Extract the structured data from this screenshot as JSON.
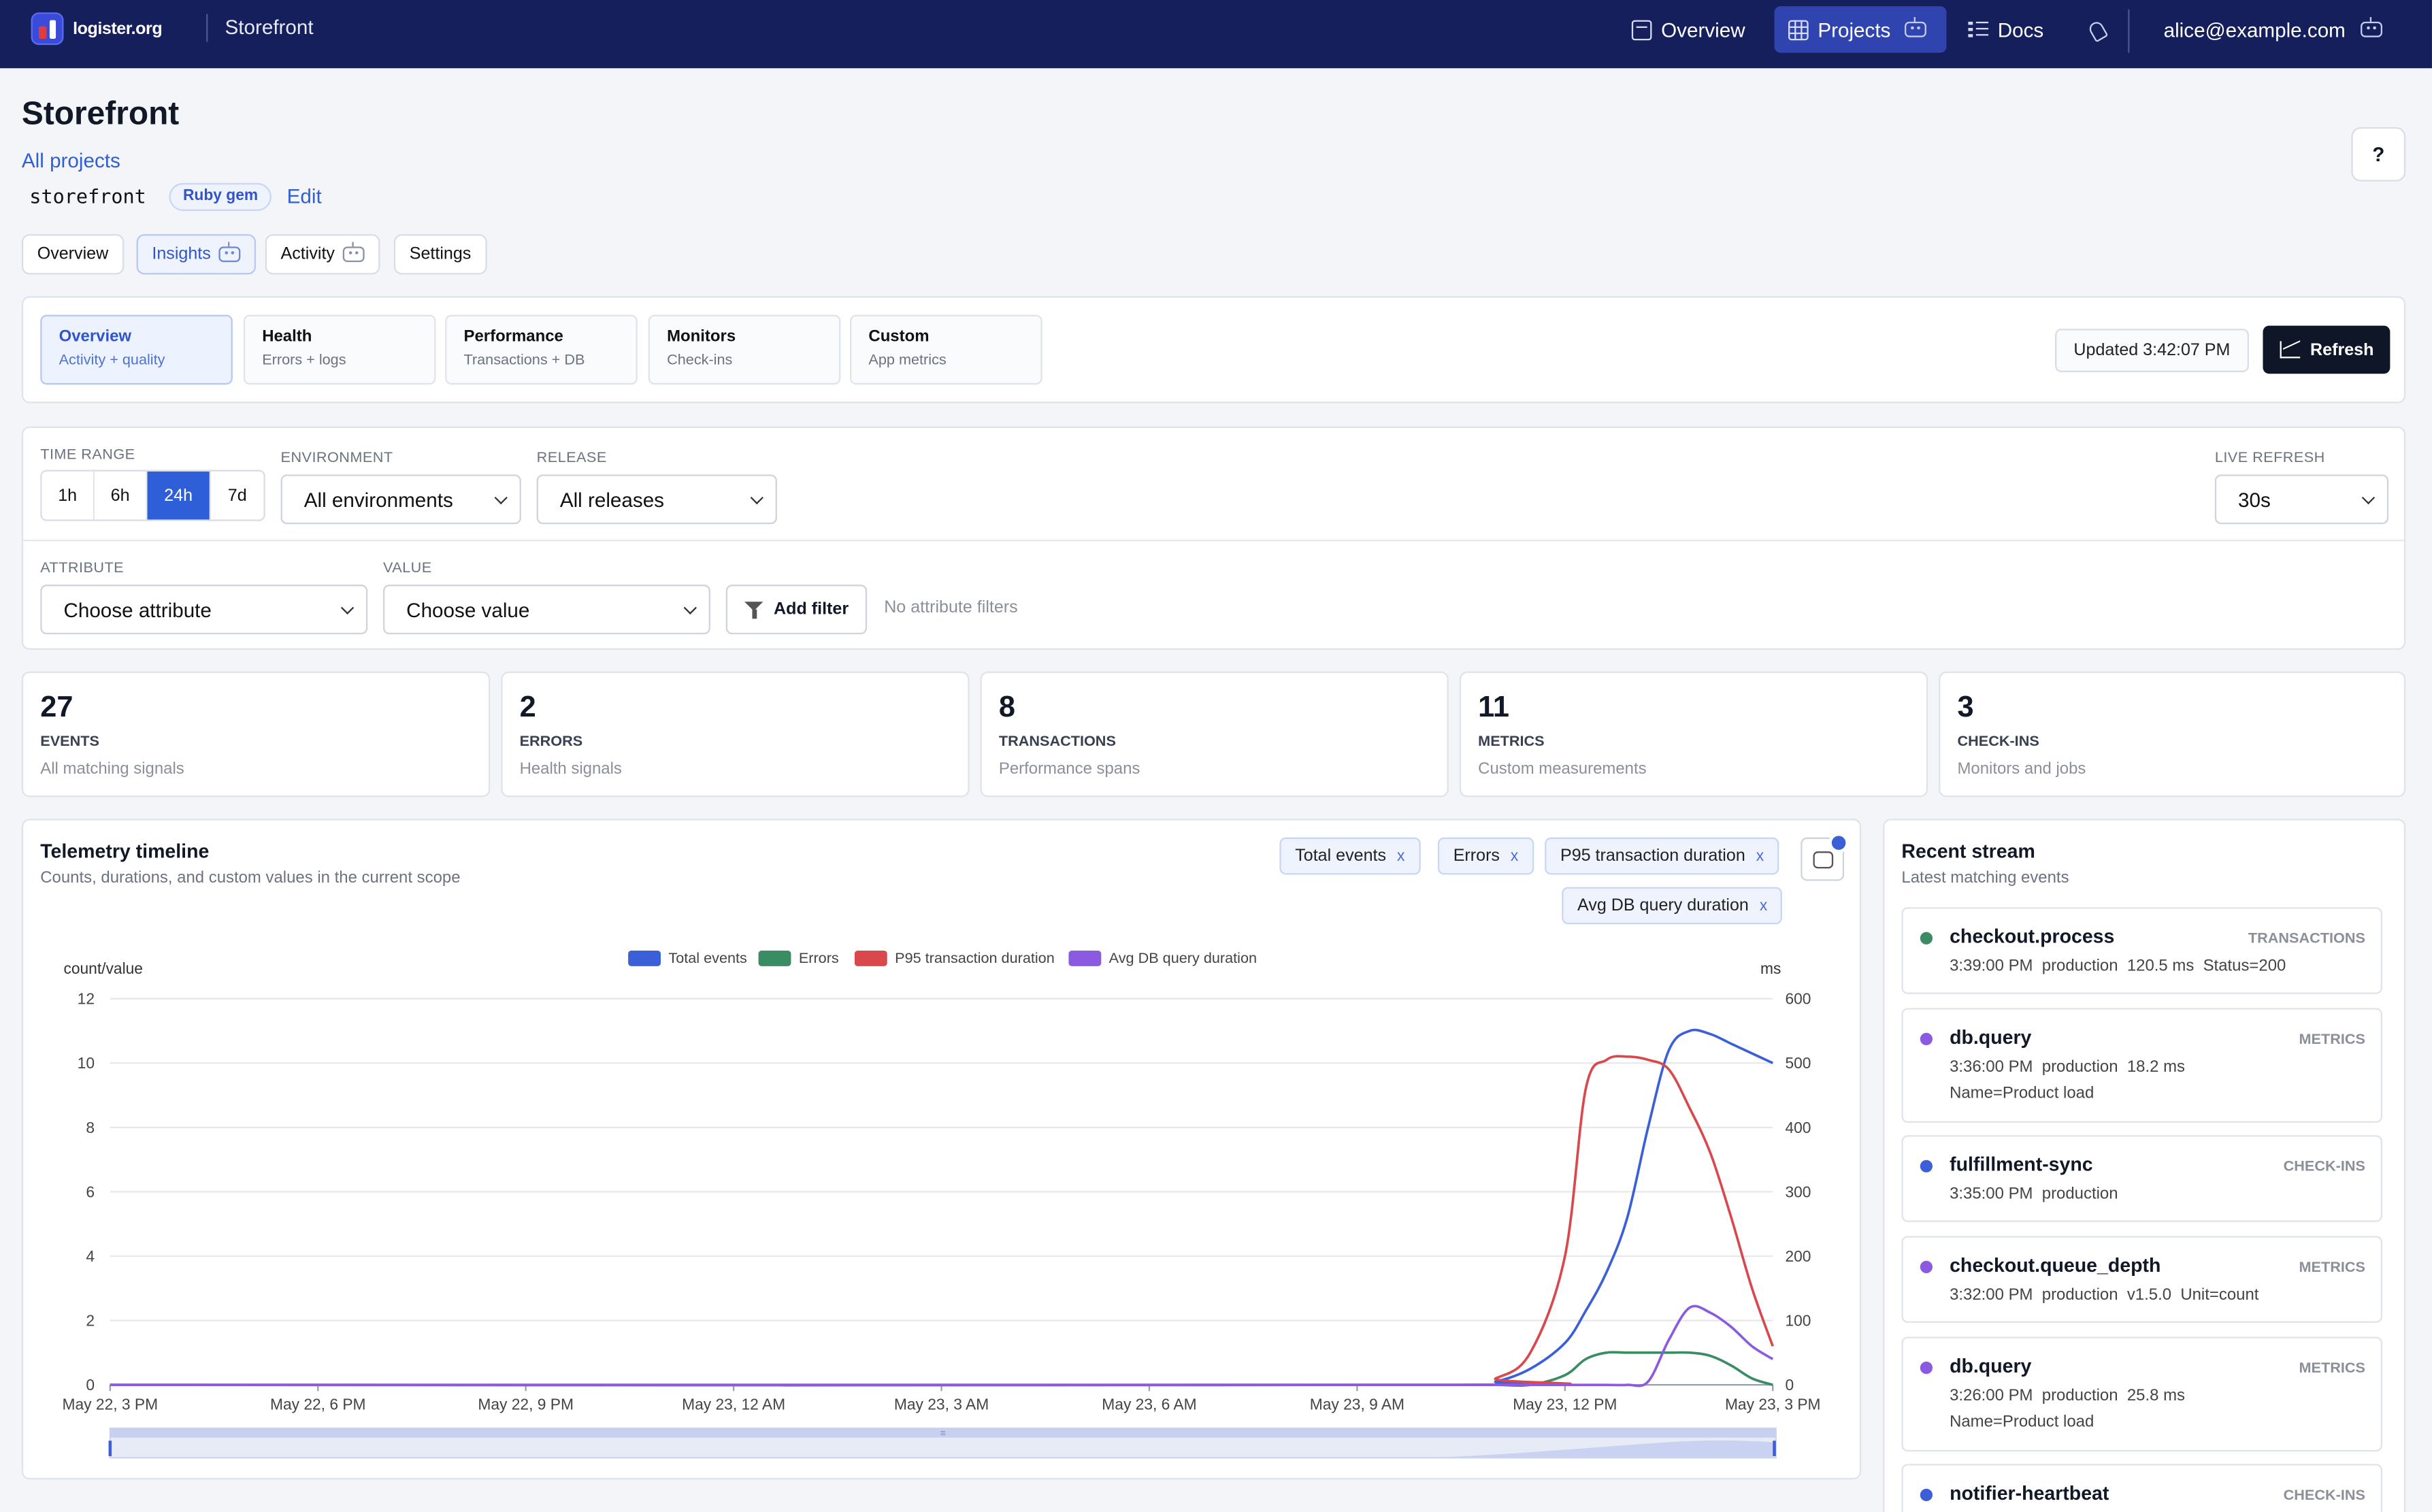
{
  "nav": {
    "brand": "logister.org",
    "project": "Storefront",
    "items": [
      {
        "label": "Overview",
        "icon": "calendar-icon"
      },
      {
        "label": "Projects",
        "icon": "grid-icon"
      },
      {
        "label": "Docs",
        "icon": "list-icon"
      }
    ],
    "user": "alice@example.com"
  },
  "header": {
    "title": "Storefront",
    "back_link": "All projects",
    "slug": "storefront",
    "badge": "Ruby gem",
    "edit": "Edit",
    "help": "?"
  },
  "subtabs": [
    "Overview",
    "Insights",
    "Activity",
    "Settings"
  ],
  "views": [
    {
      "title": "Overview",
      "sub": "Activity + quality"
    },
    {
      "title": "Health",
      "sub": "Errors + logs"
    },
    {
      "title": "Performance",
      "sub": "Transactions + DB"
    },
    {
      "title": "Monitors",
      "sub": "Check-ins"
    },
    {
      "title": "Custom",
      "sub": "App metrics"
    }
  ],
  "updated": "Updated 3:42:07 PM",
  "refresh": "Refresh",
  "filters": {
    "time_range_label": "TIME RANGE",
    "time_ranges": [
      "1h",
      "6h",
      "24h",
      "7d"
    ],
    "selected_range": "24h",
    "environment_label": "ENVIRONMENT",
    "environment": "All environments",
    "release_label": "RELEASE",
    "release": "All releases",
    "live_refresh_label": "LIVE REFRESH",
    "live_refresh": "30s",
    "attribute_label": "ATTRIBUTE",
    "attribute": "Choose attribute",
    "value_label": "VALUE",
    "value": "Choose value",
    "add_filter": "Add filter",
    "no_filters": "No attribute filters"
  },
  "stats": [
    {
      "num": "27",
      "label": "EVENTS",
      "sub": "All matching signals"
    },
    {
      "num": "2",
      "label": "ERRORS",
      "sub": "Health signals"
    },
    {
      "num": "8",
      "label": "TRANSACTIONS",
      "sub": "Performance spans"
    },
    {
      "num": "11",
      "label": "METRICS",
      "sub": "Custom measurements"
    },
    {
      "num": "3",
      "label": "CHECK-INS",
      "sub": "Monitors and jobs"
    }
  ],
  "timeline": {
    "title": "Telemetry timeline",
    "subtitle": "Counts, durations, and custom values in the current scope",
    "chips": [
      "Total events",
      "Errors",
      "P95 transaction duration",
      "Avg DB query duration"
    ],
    "chip_close": "x"
  },
  "chart_data": {
    "type": "line",
    "ylabel": "count/value",
    "y2label": "ms",
    "ylim": [
      0,
      12
    ],
    "y2lim": [
      0,
      600
    ],
    "yticks": [
      "0",
      "2",
      "4",
      "6",
      "8",
      "10",
      "12"
    ],
    "y2ticks": [
      "0",
      "100",
      "200",
      "300",
      "400",
      "500",
      "600"
    ],
    "xticks": [
      "May 22, 3 PM",
      "May 22, 6 PM",
      "May 22, 9 PM",
      "May 23, 12 AM",
      "May 23, 3 AM",
      "May 23, 6 AM",
      "May 23, 9 AM",
      "May 23, 12 PM",
      "May 23, 3 PM"
    ],
    "x_hours": [
      0,
      19.5,
      20,
      20.5,
      21,
      21.3,
      21.6,
      21.9,
      22.2,
      22.5,
      22.8,
      23.1,
      23.4,
      23.7,
      24
    ],
    "legend_position": "top-center",
    "grid": true,
    "series": [
      {
        "name": "Total events",
        "color": "#3b5fd9",
        "axis": "left",
        "values": [
          0,
          0,
          0.1,
          0.5,
          1.3,
          2.3,
          3.5,
          5.2,
          8,
          10.4,
          11,
          10.9,
          10.6,
          10.3,
          10
        ]
      },
      {
        "name": "Errors",
        "color": "#3a8c63",
        "axis": "left",
        "values": [
          0,
          0,
          0,
          0,
          0.3,
          0.8,
          1,
          1,
          1,
          1,
          1,
          0.9,
          0.6,
          0.2,
          0
        ]
      },
      {
        "name": "P95 transaction duration",
        "color": "#d9484c",
        "axis": "right",
        "values": [
          0,
          0,
          10,
          50,
          200,
          460,
          505,
          510,
          505,
          490,
          430,
          360,
          260,
          150,
          60
        ]
      },
      {
        "name": "Avg DB query duration",
        "color": "#8a5be0",
        "axis": "right",
        "values": [
          0,
          0,
          0,
          0,
          0,
          0,
          0,
          0,
          5,
          70,
          120,
          112,
          90,
          60,
          40
        ]
      }
    ]
  },
  "stream": {
    "title": "Recent stream",
    "subtitle": "Latest matching events",
    "items": [
      {
        "name": "checkout.process",
        "kind": "TRANSACTIONS",
        "color": "#3a8c63",
        "meta": "3:39:00 PM  production  120.5 ms  Status=200",
        "meta2": ""
      },
      {
        "name": "db.query",
        "kind": "METRICS",
        "color": "#8a5be0",
        "meta": "3:36:00 PM  production  18.2 ms",
        "meta2": "Name=Product load"
      },
      {
        "name": "fulfillment-sync",
        "kind": "CHECK-INS",
        "color": "#3b5fd9",
        "meta": "3:35:00 PM  production",
        "meta2": ""
      },
      {
        "name": "checkout.queue_depth",
        "kind": "METRICS",
        "color": "#8a5be0",
        "meta": "3:32:00 PM  production  v1.5.0  Unit=count",
        "meta2": ""
      },
      {
        "name": "db.query",
        "kind": "METRICS",
        "color": "#8a5be0",
        "meta": "3:26:00 PM  production  25.8 ms",
        "meta2": "Name=Product load"
      },
      {
        "name": "notifier-heartbeat",
        "kind": "CHECK-INS",
        "color": "#3b5fd9",
        "meta": "",
        "meta2": ""
      }
    ]
  }
}
